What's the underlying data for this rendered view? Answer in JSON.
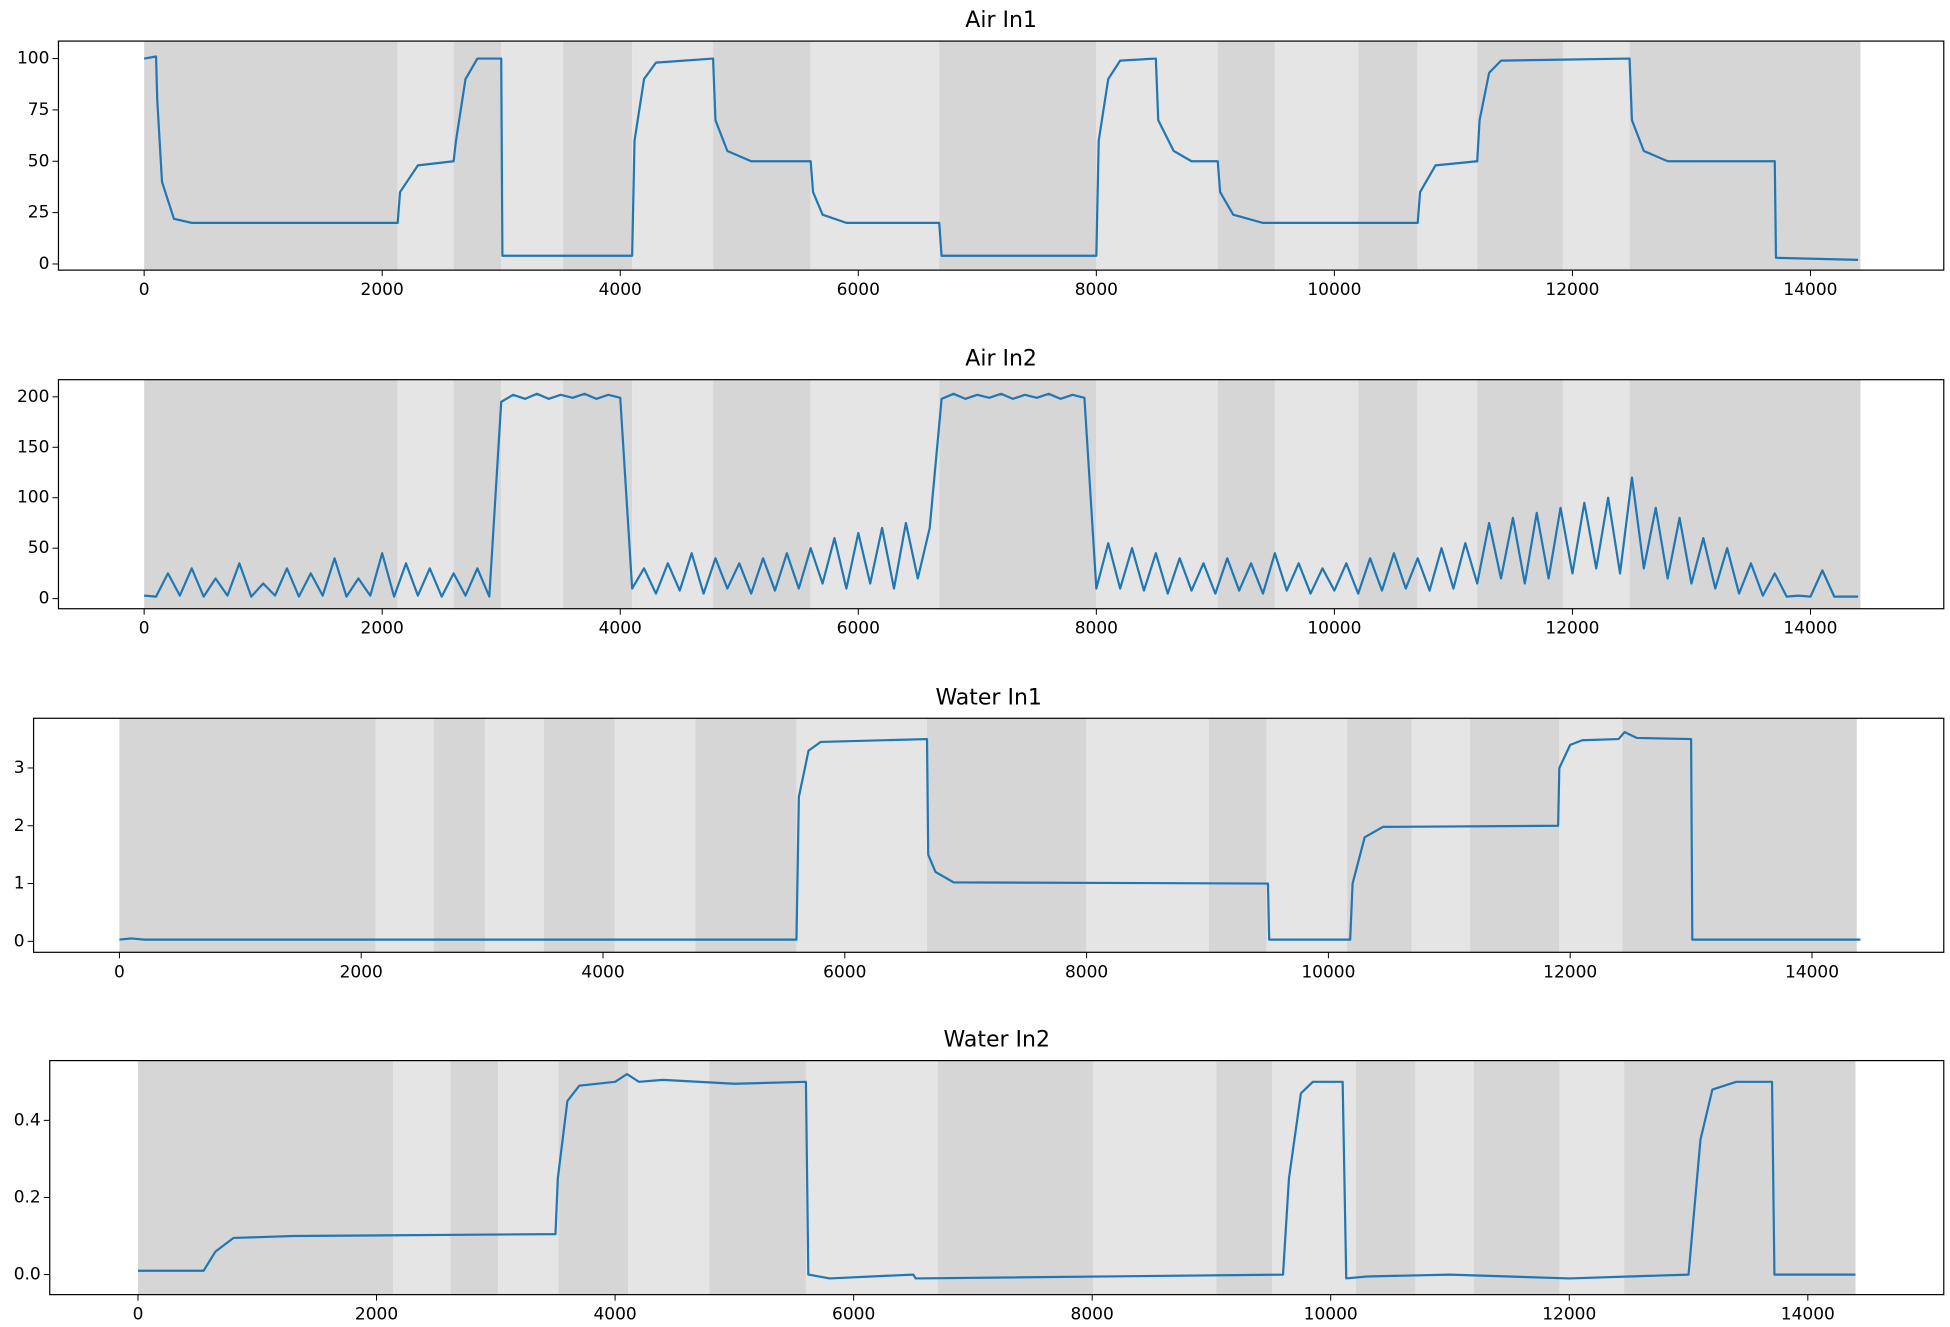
{
  "chart_data": [
    {
      "type": "line",
      "title": "Air In1",
      "series": [
        {
          "name": "Air In1",
          "color": "#1f77b4",
          "x": [
            0,
            100,
            110,
            150,
            250,
            400,
            2130,
            2150,
            2300,
            2600,
            2620,
            2700,
            2800,
            3000,
            3010,
            4100,
            4120,
            4200,
            4300,
            4780,
            4800,
            4900,
            5100,
            5600,
            5620,
            5700,
            5900,
            6680,
            6700,
            8000,
            8020,
            8100,
            8200,
            8500,
            8520,
            8650,
            8800,
            9020,
            9040,
            9150,
            9400,
            10700,
            10720,
            10850,
            11200,
            11220,
            11300,
            11400,
            12480,
            12500,
            12600,
            12800,
            13700,
            13710,
            14400
          ],
          "values": [
            100,
            101,
            80,
            40,
            22,
            20,
            20,
            35,
            48,
            50,
            60,
            90,
            100,
            100,
            4,
            4,
            60,
            90,
            98,
            100,
            70,
            55,
            50,
            50,
            35,
            24,
            20,
            20,
            4,
            4,
            60,
            90,
            99,
            100,
            70,
            55,
            50,
            50,
            35,
            24,
            20,
            20,
            35,
            48,
            50,
            70,
            93,
            99,
            100,
            70,
            55,
            50,
            50,
            3,
            2
          ]
        }
      ],
      "xlim": [
        -720,
        15120
      ],
      "ylim": [
        -3,
        108.5
      ],
      "xticks": [
        0,
        2000,
        4000,
        6000,
        8000,
        10000,
        12000,
        14000
      ],
      "yticks": [
        0,
        25,
        50,
        75,
        100
      ],
      "shade_edges": [
        0,
        2130,
        2600,
        3000,
        3520,
        4100,
        4780,
        5600,
        6680,
        8000,
        9020,
        9500,
        10200,
        10700,
        11200,
        11920,
        12480,
        14420
      ],
      "shade_colors": [
        "#d6d6d6",
        "#e5e5e5"
      ]
    },
    {
      "type": "line",
      "title": "Air In2",
      "series": [
        {
          "name": "Air In2",
          "color": "#1f77b4",
          "x": [
            0,
            100,
            200,
            300,
            400,
            500,
            600,
            700,
            800,
            900,
            1000,
            1100,
            1200,
            1300,
            1400,
            1500,
            1600,
            1700,
            1800,
            1900,
            2000,
            2100,
            2200,
            2300,
            2400,
            2500,
            2600,
            2700,
            2800,
            2900,
            3000,
            3100,
            3200,
            3300,
            3400,
            3500,
            3600,
            3700,
            3800,
            3900,
            4000,
            4100,
            4200,
            4300,
            4400,
            4500,
            4600,
            4700,
            4800,
            4900,
            5000,
            5100,
            5200,
            5300,
            5400,
            5500,
            5600,
            5700,
            5800,
            5900,
            6000,
            6100,
            6200,
            6300,
            6400,
            6500,
            6600,
            6700,
            6800,
            6900,
            7000,
            7100,
            7200,
            7300,
            7400,
            7500,
            7600,
            7700,
            7800,
            7900,
            8000,
            8100,
            8200,
            8300,
            8400,
            8500,
            8600,
            8700,
            8800,
            8900,
            9000,
            9100,
            9200,
            9300,
            9400,
            9500,
            9600,
            9700,
            9800,
            9900,
            10000,
            10100,
            10200,
            10300,
            10400,
            10500,
            10600,
            10700,
            10800,
            10900,
            11000,
            11100,
            11200,
            11300,
            11400,
            11500,
            11600,
            11700,
            11800,
            11900,
            12000,
            12100,
            12200,
            12300,
            12400,
            12500,
            12600,
            12700,
            12800,
            12900,
            13000,
            13100,
            13200,
            13300,
            13400,
            13500,
            13600,
            13700,
            13800,
            13900,
            14000,
            14100,
            14200,
            14300,
            14400
          ],
          "values": [
            3,
            2,
            25,
            3,
            30,
            2,
            20,
            3,
            35,
            2,
            15,
            3,
            30,
            2,
            25,
            3,
            40,
            2,
            20,
            3,
            45,
            2,
            35,
            3,
            30,
            2,
            25,
            3,
            30,
            2,
            195,
            202,
            198,
            203,
            198,
            202,
            199,
            203,
            198,
            202,
            199,
            10,
            30,
            5,
            35,
            8,
            45,
            5,
            40,
            10,
            35,
            5,
            40,
            8,
            45,
            10,
            50,
            15,
            60,
            10,
            65,
            15,
            70,
            10,
            75,
            20,
            70,
            198,
            203,
            198,
            202,
            199,
            203,
            198,
            202,
            199,
            203,
            198,
            202,
            199,
            10,
            55,
            10,
            50,
            8,
            45,
            5,
            40,
            8,
            35,
            5,
            40,
            8,
            35,
            5,
            45,
            8,
            35,
            5,
            30,
            8,
            35,
            5,
            40,
            8,
            45,
            10,
            40,
            8,
            50,
            10,
            55,
            15,
            75,
            20,
            80,
            15,
            85,
            20,
            90,
            25,
            95,
            30,
            100,
            25,
            120,
            30,
            90,
            20,
            80,
            15,
            60,
            10,
            50,
            5,
            35,
            3,
            25,
            2,
            3,
            2,
            28,
            2,
            2,
            2
          ]
        }
      ],
      "xlim": [
        -720,
        15120
      ],
      "ylim": [
        -10,
        217
      ],
      "xticks": [
        0,
        2000,
        4000,
        6000,
        8000,
        10000,
        12000,
        14000
      ],
      "yticks": [
        0,
        50,
        100,
        150,
        200
      ],
      "shade_edges": [
        0,
        2130,
        2600,
        3000,
        3520,
        4100,
        4780,
        5600,
        6680,
        8000,
        9020,
        9500,
        10200,
        10700,
        11200,
        11920,
        12480,
        14420
      ],
      "shade_colors": [
        "#d6d6d6",
        "#e5e5e5"
      ]
    },
    {
      "type": "line",
      "title": "Water In1",
      "series": [
        {
          "name": "Water In1",
          "color": "#1f77b4",
          "x": [
            0,
            100,
            200,
            5600,
            5620,
            5700,
            5800,
            6680,
            6690,
            6750,
            6900,
            9500,
            9510,
            10180,
            10200,
            10300,
            10450,
            11900,
            11910,
            12000,
            12100,
            12400,
            12450,
            12550,
            13000,
            13010,
            14400
          ],
          "values": [
            0.03,
            0.05,
            0.03,
            0.03,
            2.5,
            3.3,
            3.45,
            3.5,
            1.5,
            1.2,
            1.02,
            1.0,
            0.03,
            0.03,
            1.0,
            1.8,
            1.98,
            2.0,
            3.0,
            3.4,
            3.48,
            3.5,
            3.62,
            3.52,
            3.5,
            0.03,
            0.03
          ]
        }
      ],
      "xlim": [
        -710,
        15090
      ],
      "ylim": [
        -0.19,
        3.86
      ],
      "xticks": [
        0,
        2000,
        4000,
        6000,
        8000,
        10000,
        12000,
        14000
      ],
      "yticks": [
        0,
        1,
        2,
        3
      ],
      "shade_edges": [
        0,
        2120,
        2600,
        3025,
        3510,
        4095,
        4765,
        5600,
        6680,
        7995,
        9010,
        9490,
        10155,
        10690,
        11170,
        11910,
        12430,
        14370
      ],
      "shade_colors": [
        "#d6d6d6",
        "#e5e5e5"
      ]
    },
    {
      "type": "line",
      "title": "Water In2",
      "series": [
        {
          "name": "Water In2",
          "color": "#1f77b4",
          "x": [
            0,
            550,
            650,
            800,
            1300,
            3500,
            3520,
            3600,
            3700,
            4000,
            4100,
            4200,
            4400,
            5000,
            5600,
            5620,
            5800,
            6500,
            6520,
            9600,
            9650,
            9750,
            9850,
            10100,
            10130,
            10300,
            11000,
            12000,
            13000,
            13100,
            13200,
            13400,
            13700,
            13720,
            14400
          ],
          "values": [
            0.01,
            0.01,
            0.06,
            0.095,
            0.1,
            0.105,
            0.25,
            0.45,
            0.49,
            0.5,
            0.52,
            0.5,
            0.505,
            0.495,
            0.5,
            0.0,
            -0.01,
            0.0,
            -0.01,
            0.0,
            0.25,
            0.47,
            0.5,
            0.5,
            -0.01,
            -0.005,
            0.0,
            -0.01,
            0.0,
            0.35,
            0.48,
            0.5,
            0.5,
            0.0,
            0.0
          ]
        }
      ],
      "xlim": [
        -740,
        15140
      ],
      "ylim": [
        -0.052,
        0.555
      ],
      "xticks": [
        0,
        2000,
        4000,
        6000,
        8000,
        10000,
        12000,
        14000
      ],
      "yticks": [
        {
          "value": 0,
          "label": "0.0"
        },
        0.2,
        0.4
      ],
      "shade_edges": [
        0,
        2140,
        2620,
        3020,
        3525,
        4110,
        4790,
        5600,
        6705,
        8010,
        9040,
        9510,
        10210,
        10710,
        11200,
        11920,
        12460,
        14400
      ],
      "shade_colors": [
        "#d6d6d6",
        "#e5e5e5"
      ]
    }
  ]
}
